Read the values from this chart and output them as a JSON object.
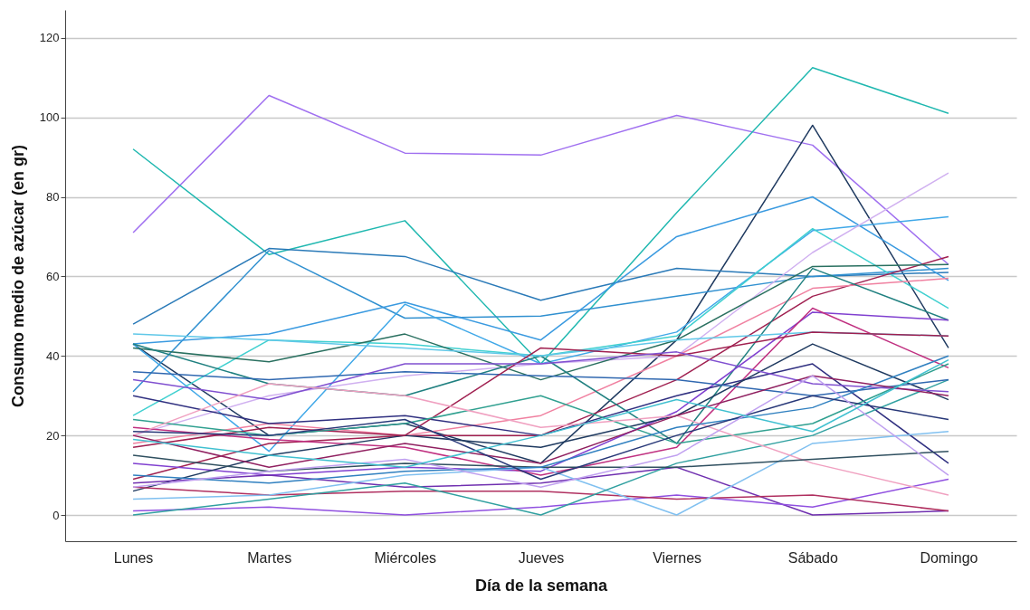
{
  "chart_data": {
    "type": "line",
    "xlabel": "Día de la semana",
    "ylabel": "Consumo medio de azúcar (en gr)",
    "categories": [
      "Lunes",
      "Martes",
      "Miércoles",
      "Jueves",
      "Viernes",
      "Sábado",
      "Domingo"
    ],
    "ylim": [
      -6.6,
      127
    ],
    "yticks": [
      0,
      20,
      40,
      60,
      80,
      100,
      120
    ],
    "grid": "y",
    "legend": false,
    "marker": "none",
    "line_style": "solid",
    "series": [
      {
        "color": "#a070f0",
        "values": [
          71,
          105.5,
          91,
          90.5,
          100.5,
          93,
          63
        ]
      },
      {
        "color": "#20b8b0",
        "values": [
          92,
          65.5,
          74,
          38,
          76,
          112.5,
          101
        ]
      },
      {
        "color": "#1f3a60",
        "values": [
          43,
          20,
          23,
          13,
          44,
          98,
          42
        ]
      },
      {
        "color": "#2a7ab8",
        "values": [
          48,
          67,
          65,
          54,
          62,
          60,
          61
        ]
      },
      {
        "color": "#3090d0",
        "values": [
          31,
          66.5,
          49.5,
          50,
          55,
          60,
          62
        ]
      },
      {
        "color": "#3a9ae0",
        "values": [
          43,
          45.5,
          53.5,
          44,
          70,
          80,
          59
        ]
      },
      {
        "color": "#40a8e8",
        "values": [
          43,
          16,
          53,
          38,
          46,
          71.5,
          75
        ]
      },
      {
        "color": "#40d0d0",
        "values": [
          25,
          44,
          43,
          40,
          45,
          72,
          52
        ]
      },
      {
        "color": "#d0b0f0",
        "values": [
          20,
          30,
          35,
          38,
          40,
          66,
          86
        ]
      },
      {
        "color": "#a02050",
        "values": [
          9,
          18,
          20,
          20,
          34,
          55,
          65
        ]
      },
      {
        "color": "#f080a0",
        "values": [
          18,
          23,
          20,
          25,
          40,
          57,
          59.5
        ]
      },
      {
        "color": "#2a7060",
        "values": [
          42,
          38.5,
          45.5,
          34,
          44,
          62.5,
          63
        ]
      },
      {
        "color": "#208080",
        "values": [
          43,
          33,
          30,
          40,
          18,
          62,
          49
        ]
      },
      {
        "color": "#8040d0",
        "values": [
          13,
          10,
          12,
          11,
          26,
          51,
          49
        ]
      },
      {
        "color": "#c03080",
        "values": [
          22,
          19,
          17,
          10,
          17,
          52,
          37
        ]
      },
      {
        "color": "#303080",
        "values": [
          30,
          23,
          25,
          20,
          30,
          38,
          13
        ]
      },
      {
        "color": "#1f3a60",
        "values": [
          6,
          15,
          20,
          17,
          25,
          43,
          29
        ]
      },
      {
        "color": "#7030b0",
        "values": [
          8,
          10,
          7,
          8,
          12,
          0,
          1
        ]
      },
      {
        "color": "#9050e0",
        "values": [
          1,
          2,
          0,
          2,
          5,
          2,
          9
        ]
      },
      {
        "color": "#b03060",
        "values": [
          7,
          5,
          6,
          6,
          4,
          5,
          1
        ]
      },
      {
        "color": "#80c0f0",
        "values": [
          4,
          5,
          10,
          12,
          0,
          18,
          21
        ]
      },
      {
        "color": "#30a0a0",
        "values": [
          0,
          4,
          8,
          0,
          13,
          20,
          34
        ]
      },
      {
        "color": "#60c8e8",
        "values": [
          45.5,
          44,
          42,
          40,
          44,
          46,
          45
        ]
      },
      {
        "color": "#3068b0",
        "values": [
          36,
          34,
          36,
          35,
          34,
          30,
          34
        ]
      },
      {
        "color": "#a02050",
        "values": [
          17,
          22,
          20,
          42,
          40,
          46,
          45
        ]
      },
      {
        "color": "#8050d0",
        "values": [
          34,
          29,
          38,
          38,
          41,
          33,
          31
        ]
      },
      {
        "color": "#30a090",
        "values": [
          24,
          20,
          23,
          30,
          18,
          23,
          38
        ]
      },
      {
        "color": "#f0a0c0",
        "values": [
          20,
          33,
          30,
          22,
          25,
          13,
          5
        ]
      },
      {
        "color": "#305060",
        "values": [
          15,
          11,
          13,
          12,
          12,
          14,
          16
        ]
      },
      {
        "color": "#3080c0",
        "values": [
          10,
          8,
          11,
          12,
          22,
          27,
          40
        ]
      },
      {
        "color": "#902060",
        "values": [
          20,
          12,
          18,
          13,
          25,
          35,
          30
        ]
      },
      {
        "color": "#283878",
        "values": [
          21,
          20,
          24,
          9,
          20,
          30,
          24
        ]
      },
      {
        "color": "#c0a0f0",
        "values": [
          7,
          11,
          14,
          7,
          15,
          35,
          10
        ]
      },
      {
        "color": "#40c0d0",
        "values": [
          19,
          15,
          12,
          20,
          29,
          21,
          39
        ]
      }
    ]
  }
}
